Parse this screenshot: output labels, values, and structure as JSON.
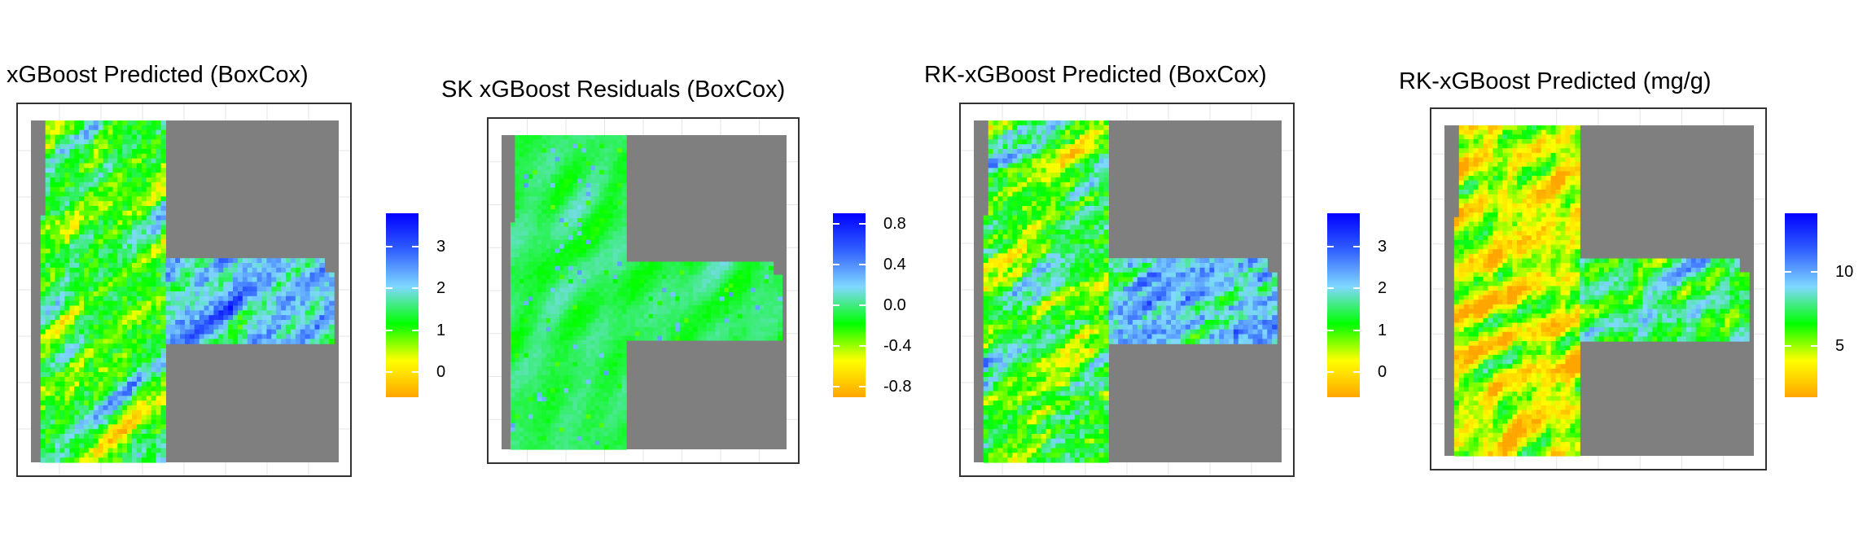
{
  "colors": {
    "background": "#ffffff",
    "mask_grey": "#7f7f7f",
    "frame": "#333333",
    "grid": "#e6e6e6",
    "palette": [
      "#ffa500",
      "#ffff00",
      "#00ff00",
      "#80d8ff",
      "#3060ff",
      "#0000ff"
    ]
  },
  "chart_data": [
    {
      "type": "heatmap",
      "title": "xGBoost Predicted (BoxCox)",
      "legend": {
        "position": "right",
        "range": [
          -0.6,
          3.8
        ],
        "ticks": [
          0,
          1,
          2,
          3
        ],
        "tick_labels": [
          "0",
          "1",
          "2",
          "3"
        ]
      },
      "grid": true
    },
    {
      "type": "heatmap",
      "title": "SK xGBoost Residuals (BoxCox)",
      "legend": {
        "position": "right",
        "range": [
          -0.9,
          0.9
        ],
        "ticks": [
          -0.8,
          -0.4,
          0.0,
          0.4,
          0.8
        ],
        "tick_labels": [
          "-0.8",
          "-0.4",
          "0.0",
          "0.4",
          "0.8"
        ]
      },
      "grid": true
    },
    {
      "type": "heatmap",
      "title": "RK-xGBoost Predicted (BoxCox)",
      "legend": {
        "position": "right",
        "range": [
          -0.6,
          3.8
        ],
        "ticks": [
          0,
          1,
          2,
          3
        ],
        "tick_labels": [
          "0",
          "1",
          "2",
          "3"
        ]
      },
      "grid": true
    },
    {
      "type": "heatmap",
      "title": "RK-xGBoost Predicted (mg/g)",
      "legend": {
        "position": "right",
        "range": [
          1.5,
          14
        ],
        "ticks": [
          5,
          10
        ],
        "tick_labels": [
          "5",
          "10"
        ]
      },
      "grid": true
    }
  ]
}
